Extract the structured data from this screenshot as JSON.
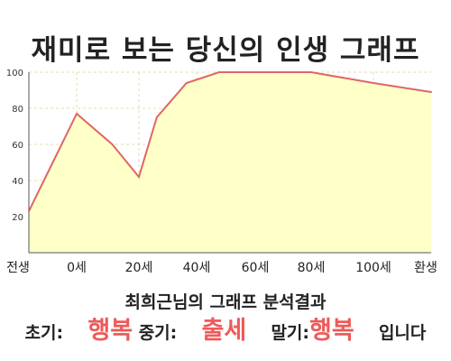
{
  "page": {
    "summary": "최희근님의 그래프 분석결과",
    "result": {
      "early_label": "초기:",
      "early_value": "행복",
      "mid_label": "중기:",
      "mid_value": "출세",
      "late_label": "말기:",
      "late_value": "행복",
      "ending": "입니다"
    },
    "highlight_color": "#ef5a5a"
  },
  "chart_data": {
    "type": "area",
    "title": "재미로 보는 당신의 인생 그래프",
    "xlabel": "",
    "ylabel": "",
    "x_ticks": [
      "전생",
      "0세",
      "20세",
      "40세",
      "60세",
      "80세",
      "100세",
      "환생"
    ],
    "y_ticks": [
      "20",
      "40",
      "60",
      "80",
      "100"
    ],
    "ylim": [
      0,
      100
    ],
    "grid": true,
    "legend": "none",
    "x": [
      "전생",
      "0세",
      "12세",
      "20세",
      "27세",
      "37세",
      "48세",
      "79세",
      "100세",
      "환생"
    ],
    "values": [
      23,
      77,
      60,
      42,
      75,
      94,
      100,
      100,
      94,
      89
    ],
    "line_color": "#e06666",
    "fill_color": "#ffffc8"
  }
}
